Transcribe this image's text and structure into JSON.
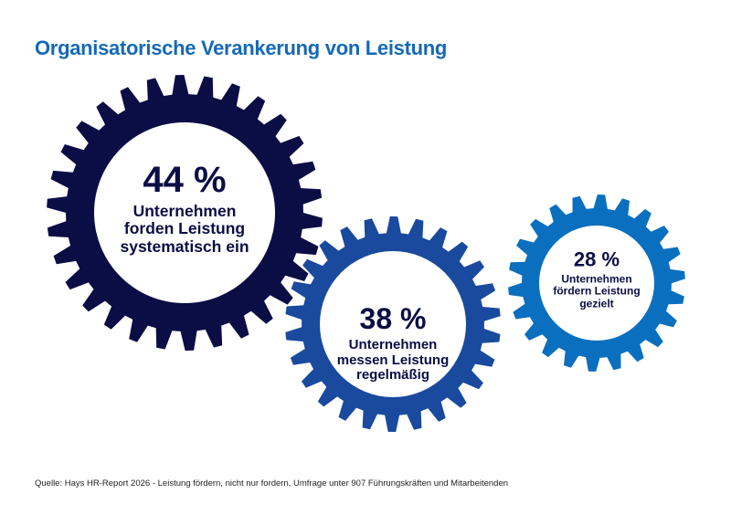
{
  "title": "Organisatorische Verankerung von Leistung",
  "gears": [
    {
      "percent": "44 %",
      "line1": "Unternehmen",
      "line2": "forden Leistung",
      "line3": "systematisch ein",
      "color": "#0b0d45"
    },
    {
      "percent": "38 %",
      "line1": "Unternehmen",
      "line2": "messen Leistung",
      "line3": "regelmäßig",
      "color": "#1a4a9e"
    },
    {
      "percent": "28 %",
      "line1": "Unternehmen",
      "line2": "fördern Leistung",
      "line3": "gezielt",
      "color": "#0b6fbf"
    }
  ],
  "source": "Quelle: Hays HR-Report 2026 - Leistung fördern, nicht nur fordern, Umfrage unter 907 Führungskräften und Mitarbeitenden"
}
